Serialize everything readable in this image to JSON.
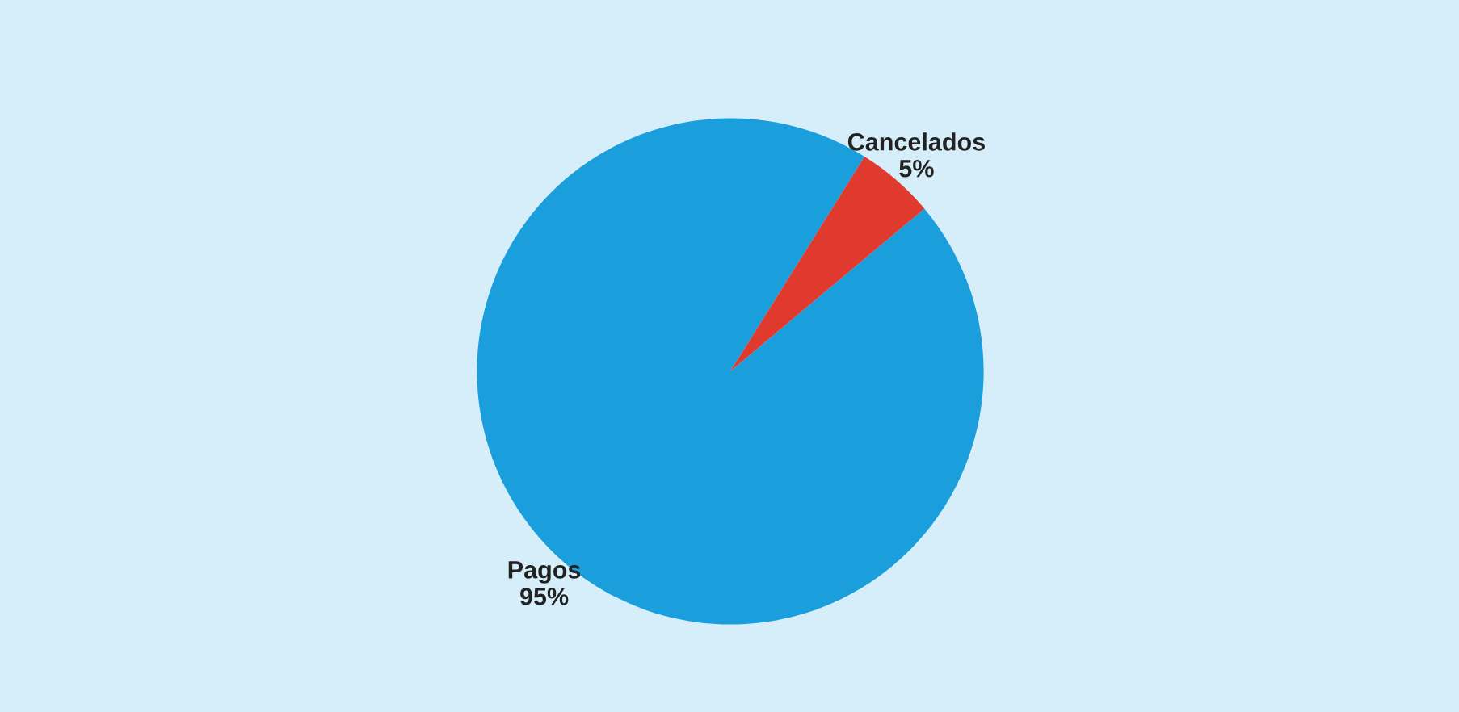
{
  "chart_data": {
    "type": "pie",
    "categories": [
      "Pagos",
      "Cancelados"
    ],
    "values": [
      95,
      5
    ],
    "colors": [
      "#1a9fdc",
      "#e0392e"
    ],
    "value_labels": [
      "95%",
      "5%"
    ]
  }
}
